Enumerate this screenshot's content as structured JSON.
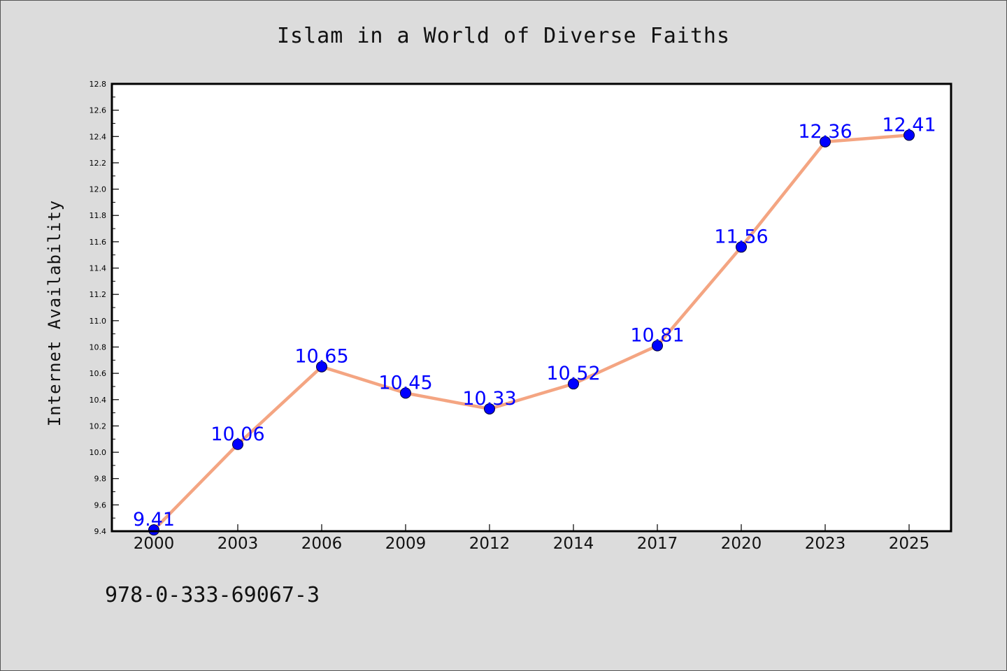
{
  "page": {
    "footer_code": "978-0-333-69067-3"
  },
  "chart_data": {
    "type": "line",
    "title": "Islam in a World of Diverse Faiths",
    "xlabel": "",
    "ylabel": "Internet Availability",
    "categories": [
      "2000",
      "2003",
      "2006",
      "2009",
      "2012",
      "2014",
      "2017",
      "2020",
      "2023",
      "2025"
    ],
    "series": [
      {
        "values": [
          9.41,
          10.06,
          10.65,
          10.45,
          10.33,
          10.52,
          10.81,
          11.56,
          12.36,
          12.41
        ],
        "labels": [
          "9.41",
          "10.06",
          "10.65",
          "10.45",
          "10.33",
          "10.52",
          "10.81",
          "11.56",
          "12.36",
          "12.41"
        ]
      }
    ],
    "ylim": [
      9.4,
      12.8
    ],
    "yticks": [
      "9.4",
      "9.6",
      "9.8",
      "10.0",
      "10.2",
      "10.4",
      "10.6",
      "10.8",
      "11.0",
      "11.2",
      "11.4",
      "11.6",
      "11.8",
      "12.0",
      "12.2",
      "12.4",
      "12.6",
      "12.8"
    ],
    "grid": false,
    "legend": "none",
    "colors": {
      "line": "#f4a582",
      "marker": "#0000ff",
      "data_label": "#0000ff",
      "plot_background": "#ffffff",
      "figure_background": "#dcdcdc"
    }
  }
}
